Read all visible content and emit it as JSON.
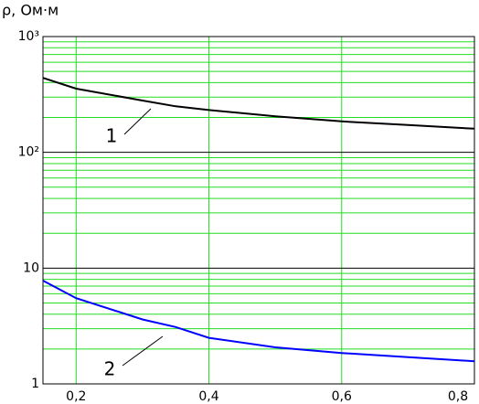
{
  "chart_data": {
    "type": "line",
    "y_label": "ρ, Ом·м",
    "x": [
      0.15,
      0.2,
      0.3,
      0.35,
      0.4,
      0.5,
      0.6,
      0.7,
      0.8
    ],
    "series": [
      {
        "color": "#000000",
        "values": [
          440,
          355,
          280,
          250,
          232,
          205,
          185,
          172,
          160
        ]
      },
      {
        "color": "#0000ff",
        "values": [
          7.8,
          5.5,
          3.6,
          3.1,
          2.5,
          2.07,
          1.85,
          1.7,
          1.57
        ]
      }
    ],
    "annotations": [
      {
        "text": "1"
      },
      {
        "text": "2"
      }
    ],
    "xlim": [
      0.15,
      0.8
    ],
    "xticks": [
      {
        "value": 0.2,
        "label": "0,2"
      },
      {
        "value": 0.4,
        "label": "0,4"
      },
      {
        "value": 0.6,
        "label": "0,6"
      },
      {
        "value": 0.8,
        "label": "0,8"
      }
    ],
    "ylim": [
      1,
      1000
    ],
    "yticks": [
      1,
      10,
      {
        "value": 100,
        "label": "10²"
      },
      {
        "value": 1000,
        "label": "10³"
      }
    ],
    "log_y": true,
    "grid": true,
    "minor_grid": true,
    "grid_color": "#22dd22"
  }
}
